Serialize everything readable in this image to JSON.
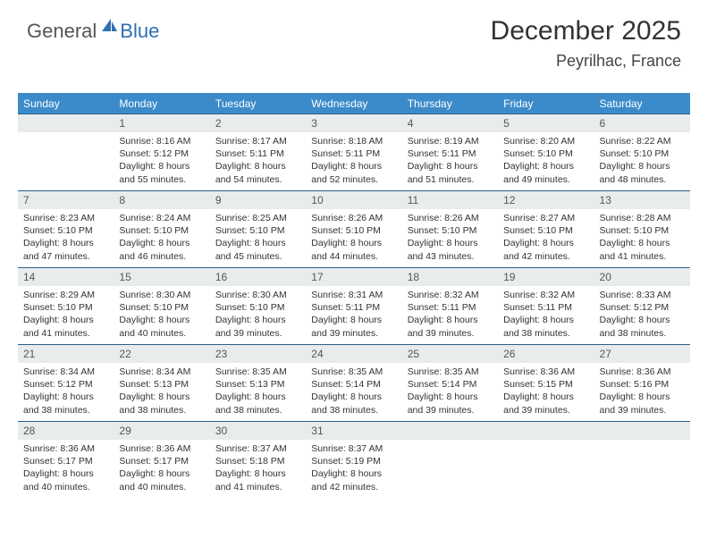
{
  "logo": {
    "general": "General",
    "blue": "Blue"
  },
  "header": {
    "title": "December 2025",
    "location": "Peyrilhac, France"
  },
  "styling": {
    "header_bg": "#3b8bca",
    "header_text": "#ffffff",
    "band_bg": "#e9eced",
    "row_border": "#2a5f8a",
    "body_text": "#333333",
    "page_bg": "#ffffff",
    "title_fontsize": 30,
    "location_fontsize": 18,
    "dayhead_fontsize": 12,
    "daynum_fontsize": 12,
    "content_fontsize": 10.5,
    "logo_icon_color": "#2f6fb0"
  },
  "calendar": {
    "day_headers": [
      "Sunday",
      "Monday",
      "Tuesday",
      "Wednesday",
      "Thursday",
      "Friday",
      "Saturday"
    ],
    "weeks": [
      [
        null,
        {
          "n": "1",
          "sr": "8:16 AM",
          "ss": "5:12 PM",
          "dl": "8 hours and 55 minutes."
        },
        {
          "n": "2",
          "sr": "8:17 AM",
          "ss": "5:11 PM",
          "dl": "8 hours and 54 minutes."
        },
        {
          "n": "3",
          "sr": "8:18 AM",
          "ss": "5:11 PM",
          "dl": "8 hours and 52 minutes."
        },
        {
          "n": "4",
          "sr": "8:19 AM",
          "ss": "5:11 PM",
          "dl": "8 hours and 51 minutes."
        },
        {
          "n": "5",
          "sr": "8:20 AM",
          "ss": "5:10 PM",
          "dl": "8 hours and 49 minutes."
        },
        {
          "n": "6",
          "sr": "8:22 AM",
          "ss": "5:10 PM",
          "dl": "8 hours and 48 minutes."
        }
      ],
      [
        {
          "n": "7",
          "sr": "8:23 AM",
          "ss": "5:10 PM",
          "dl": "8 hours and 47 minutes."
        },
        {
          "n": "8",
          "sr": "8:24 AM",
          "ss": "5:10 PM",
          "dl": "8 hours and 46 minutes."
        },
        {
          "n": "9",
          "sr": "8:25 AM",
          "ss": "5:10 PM",
          "dl": "8 hours and 45 minutes."
        },
        {
          "n": "10",
          "sr": "8:26 AM",
          "ss": "5:10 PM",
          "dl": "8 hours and 44 minutes."
        },
        {
          "n": "11",
          "sr": "8:26 AM",
          "ss": "5:10 PM",
          "dl": "8 hours and 43 minutes."
        },
        {
          "n": "12",
          "sr": "8:27 AM",
          "ss": "5:10 PM",
          "dl": "8 hours and 42 minutes."
        },
        {
          "n": "13",
          "sr": "8:28 AM",
          "ss": "5:10 PM",
          "dl": "8 hours and 41 minutes."
        }
      ],
      [
        {
          "n": "14",
          "sr": "8:29 AM",
          "ss": "5:10 PM",
          "dl": "8 hours and 41 minutes."
        },
        {
          "n": "15",
          "sr": "8:30 AM",
          "ss": "5:10 PM",
          "dl": "8 hours and 40 minutes."
        },
        {
          "n": "16",
          "sr": "8:30 AM",
          "ss": "5:10 PM",
          "dl": "8 hours and 39 minutes."
        },
        {
          "n": "17",
          "sr": "8:31 AM",
          "ss": "5:11 PM",
          "dl": "8 hours and 39 minutes."
        },
        {
          "n": "18",
          "sr": "8:32 AM",
          "ss": "5:11 PM",
          "dl": "8 hours and 39 minutes."
        },
        {
          "n": "19",
          "sr": "8:32 AM",
          "ss": "5:11 PM",
          "dl": "8 hours and 38 minutes."
        },
        {
          "n": "20",
          "sr": "8:33 AM",
          "ss": "5:12 PM",
          "dl": "8 hours and 38 minutes."
        }
      ],
      [
        {
          "n": "21",
          "sr": "8:34 AM",
          "ss": "5:12 PM",
          "dl": "8 hours and 38 minutes."
        },
        {
          "n": "22",
          "sr": "8:34 AM",
          "ss": "5:13 PM",
          "dl": "8 hours and 38 minutes."
        },
        {
          "n": "23",
          "sr": "8:35 AM",
          "ss": "5:13 PM",
          "dl": "8 hours and 38 minutes."
        },
        {
          "n": "24",
          "sr": "8:35 AM",
          "ss": "5:14 PM",
          "dl": "8 hours and 38 minutes."
        },
        {
          "n": "25",
          "sr": "8:35 AM",
          "ss": "5:14 PM",
          "dl": "8 hours and 39 minutes."
        },
        {
          "n": "26",
          "sr": "8:36 AM",
          "ss": "5:15 PM",
          "dl": "8 hours and 39 minutes."
        },
        {
          "n": "27",
          "sr": "8:36 AM",
          "ss": "5:16 PM",
          "dl": "8 hours and 39 minutes."
        }
      ],
      [
        {
          "n": "28",
          "sr": "8:36 AM",
          "ss": "5:17 PM",
          "dl": "8 hours and 40 minutes."
        },
        {
          "n": "29",
          "sr": "8:36 AM",
          "ss": "5:17 PM",
          "dl": "8 hours and 40 minutes."
        },
        {
          "n": "30",
          "sr": "8:37 AM",
          "ss": "5:18 PM",
          "dl": "8 hours and 41 minutes."
        },
        {
          "n": "31",
          "sr": "8:37 AM",
          "ss": "5:19 PM",
          "dl": "8 hours and 42 minutes."
        },
        null,
        null,
        null
      ]
    ],
    "labels": {
      "sunrise": "Sunrise: ",
      "sunset": "Sunset: ",
      "daylight": "Daylight: "
    }
  }
}
